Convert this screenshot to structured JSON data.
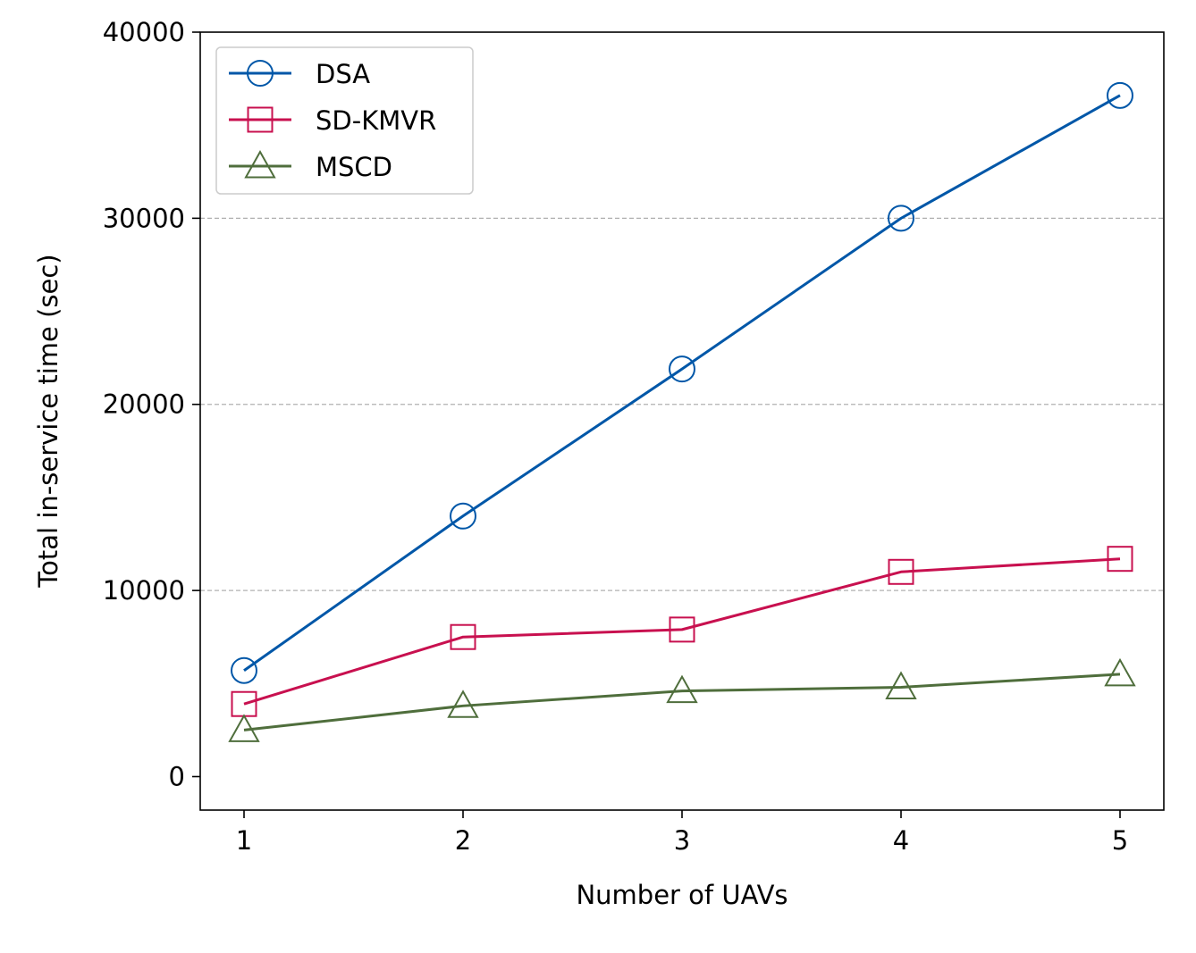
{
  "chart_data": {
    "type": "line",
    "title": "",
    "xlabel": "Number of UAVs",
    "ylabel": "Total in-service time (sec)",
    "x": [
      1,
      2,
      3,
      4,
      5
    ],
    "xticks": [
      "1",
      "2",
      "3",
      "4",
      "5"
    ],
    "xlim": [
      0.8,
      5.2
    ],
    "ylim": [
      -1800,
      40000
    ],
    "yticks": [
      "0",
      "10000",
      "20000",
      "30000",
      "40000"
    ],
    "grid": "horizontal dashed at 10000, 20000, 30000",
    "legend_position": "top-left",
    "series": [
      {
        "name": "DSA",
        "marker": "circle",
        "color": "#0057a8",
        "values": [
          5700,
          14000,
          21900,
          30000,
          36600
        ]
      },
      {
        "name": "SD-KMVR",
        "marker": "square",
        "color": "#c8104f",
        "values": [
          3900,
          7500,
          7900,
          11000,
          11700
        ]
      },
      {
        "name": "MSCD",
        "marker": "triangle",
        "color": "#4f6e3c",
        "values": [
          2500,
          3800,
          4600,
          4800,
          5500
        ]
      }
    ]
  }
}
